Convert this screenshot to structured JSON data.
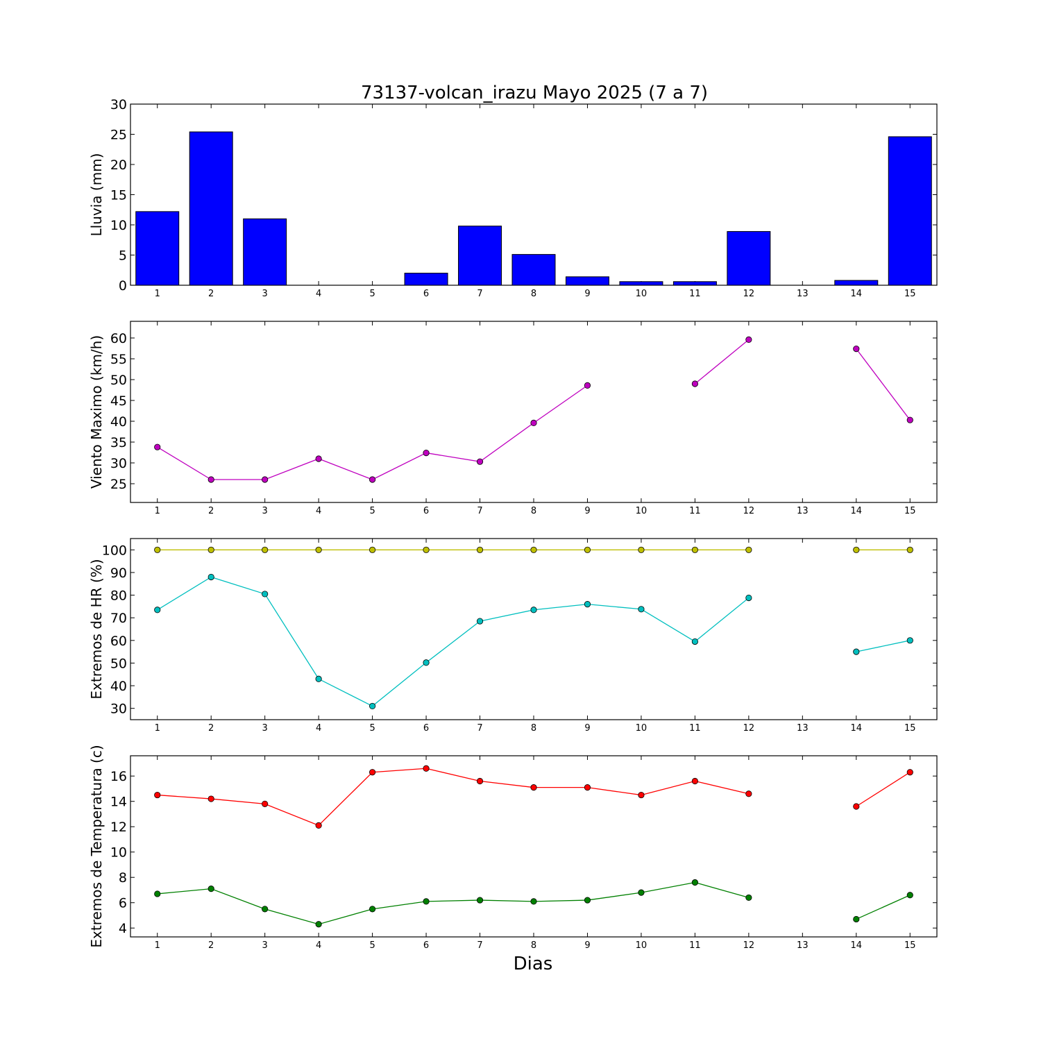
{
  "chart_data": {
    "title": "73137-volcan_irazu Mayo 2025  (7 a 7)",
    "xlabel": "Dias",
    "x": [
      1,
      2,
      3,
      4,
      5,
      6,
      7,
      8,
      9,
      10,
      11,
      12,
      13,
      14,
      15
    ],
    "x_tick_labels": [
      "1",
      "2",
      "3",
      "4",
      "5",
      "6",
      "7",
      "8",
      "9",
      "10",
      "11",
      "12",
      "13",
      "14",
      "15"
    ],
    "panels": [
      {
        "type": "bar",
        "ylabel": "Lluvia (mm)",
        "ylim": [
          0,
          30
        ],
        "yticks": [
          0,
          5,
          10,
          15,
          20,
          25,
          30
        ],
        "grid": false,
        "series": [
          {
            "color": "#0000ff",
            "values": [
              12.2,
              25.4,
              11.0,
              0.0,
              0.0,
              2.0,
              9.8,
              5.1,
              1.4,
              0.6,
              0.6,
              8.9,
              null,
              0.8,
              24.6
            ]
          }
        ]
      },
      {
        "type": "line",
        "ylabel": "Viento Maximo (km/h)",
        "ylim": [
          20.5,
          64
        ],
        "yticks": [
          25,
          30,
          35,
          40,
          45,
          50,
          55,
          60
        ],
        "grid": false,
        "series": [
          {
            "color": "#bf00bf",
            "values": [
              33.8,
              26.0,
              26.0,
              31.0,
              26.0,
              32.4,
              30.3,
              39.6,
              48.6,
              null,
              49.0,
              59.6,
              null,
              57.4,
              40.3
            ]
          }
        ]
      },
      {
        "type": "line",
        "ylabel": "Extremos de HR (%)",
        "ylim": [
          25,
          105
        ],
        "yticks": [
          30,
          40,
          50,
          60,
          70,
          80,
          90,
          100
        ],
        "grid": false,
        "series": [
          {
            "color": "#bfbf00",
            "values": [
              100,
              100,
              100,
              100,
              100,
              100,
              100,
              100,
              100,
              100,
              100,
              100,
              null,
              100,
              100
            ]
          },
          {
            "color": "#00bfbf",
            "values": [
              73.5,
              88.0,
              80.5,
              43.0,
              31.0,
              50.2,
              68.5,
              73.5,
              76.0,
              73.8,
              59.5,
              78.8,
              null,
              55.0,
              60.0
            ]
          }
        ]
      },
      {
        "type": "line",
        "ylabel": "Extremos de Temperatura (c)",
        "ylim": [
          3.3,
          17.6
        ],
        "yticks": [
          4,
          6,
          8,
          10,
          12,
          14,
          16
        ],
        "grid": false,
        "series": [
          {
            "color": "#ff0000",
            "values": [
              14.5,
              14.2,
              13.8,
              12.1,
              16.3,
              16.6,
              15.6,
              15.1,
              15.1,
              14.5,
              15.6,
              14.6,
              null,
              13.6,
              16.3
            ]
          },
          {
            "color": "#008000",
            "values": [
              6.7,
              7.1,
              5.5,
              4.3,
              5.5,
              6.1,
              6.2,
              6.1,
              6.2,
              6.8,
              7.6,
              6.4,
              null,
              4.7,
              6.6
            ]
          }
        ]
      }
    ]
  }
}
